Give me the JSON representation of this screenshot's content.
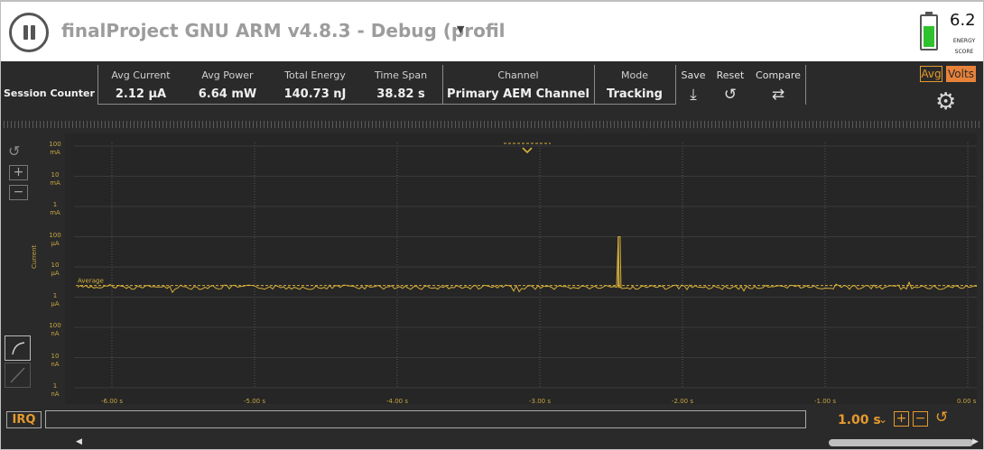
{
  "header": {
    "title": "finalProject GNU ARM v4.8.3 - Debug (profil",
    "energy_score": {
      "value": "6.2",
      "label_line1": "ENERGY",
      "label_line2": "SCORE",
      "level": 0.72,
      "color": "#2ec22e"
    }
  },
  "stats": {
    "session_label": "Session Counter",
    "avg_current": {
      "label": "Avg Current",
      "value": "2.12 µA"
    },
    "avg_power": {
      "label": "Avg Power",
      "value": "6.64 mW"
    },
    "total_energy": {
      "label": "Total Energy",
      "value": "140.73 nJ"
    },
    "time_span": {
      "label": "Time Span",
      "value": "38.82 s"
    },
    "channel": {
      "label": "Channel",
      "value": "Primary AEM Channel"
    },
    "mode": {
      "label": "Mode",
      "value": "Tracking"
    }
  },
  "tools": {
    "save": "Save",
    "reset": "Reset",
    "compare": "Compare"
  },
  "toggles": {
    "avg": "Avg",
    "volts": "Volts"
  },
  "chart_data": {
    "type": "line",
    "ylabel": "Current",
    "y_scale": "log",
    "y_ticks": [
      {
        "value": "100",
        "unit": "mA"
      },
      {
        "value": "10",
        "unit": "mA"
      },
      {
        "value": "1",
        "unit": "mA"
      },
      {
        "value": "100",
        "unit": "µA"
      },
      {
        "value": "10",
        "unit": "µA"
      },
      {
        "value": "1",
        "unit": "µA"
      },
      {
        "value": "100",
        "unit": "nA"
      },
      {
        "value": "10",
        "unit": "nA"
      },
      {
        "value": "1",
        "unit": "nA"
      }
    ],
    "x_ticks": [
      "-6.00 s",
      "-5.00 s",
      "-4.00 s",
      "-3.00 s",
      "-2.00 s",
      "-1.00 s",
      "0.00 s"
    ],
    "average_label": "Average",
    "average_value_uA": 2.12,
    "spike": {
      "x_s": -2.45,
      "value_uA": 100
    },
    "series_color": "#d6b03a",
    "grid": true
  },
  "footer": {
    "irq_label": "IRQ",
    "timescale": "1.00 s"
  },
  "colors": {
    "accent": "#e59a2d",
    "background": "#2a2a2a"
  }
}
